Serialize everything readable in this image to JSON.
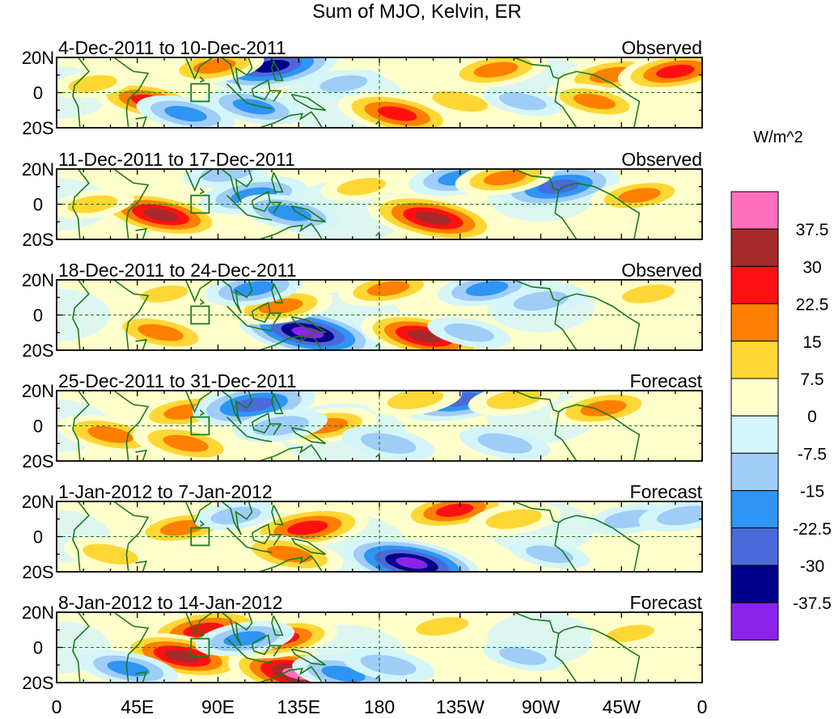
{
  "chart_data": {
    "type": "heatmap",
    "title": "Sum of MJO, Kelvin, ER",
    "colorbar": {
      "unit_label": "W/m^2",
      "tick_labels": [
        "37.5",
        "30",
        "22.5",
        "15",
        "7.5",
        "0",
        "-7.5",
        "-15",
        "-22.5",
        "-30",
        "-37.5"
      ],
      "colors": [
        "#ff70bb",
        "#a52a2a",
        "#ff1010",
        "#ff7f00",
        "#ffd735",
        "#ffffcc",
        "#d4f5f9",
        "#9fcdf8",
        "#2e95f5",
        "#4a6ad9",
        "#00008b",
        "#8b23e8"
      ]
    },
    "x_ticks": [
      "0",
      "45E",
      "90E",
      "135E",
      "180",
      "135W",
      "90W",
      "45W",
      "0"
    ],
    "y_ticks": [
      "20N",
      "0",
      "20S"
    ],
    "panels": [
      {
        "dates": "4-Dec-2011 to 10-Dec-2011",
        "status": "Observed",
        "features": [
          {
            "lon": 52,
            "lat": -5,
            "value": 25
          },
          {
            "lon": 72,
            "lat": -12,
            "value": -18
          },
          {
            "lon": 110,
            "lat": -8,
            "value": -18
          },
          {
            "lon": 120,
            "lat": 15,
            "value": -35
          },
          {
            "lon": 88,
            "lat": 15,
            "value": 18
          },
          {
            "lon": 190,
            "lat": -12,
            "value": 28
          },
          {
            "lon": 225,
            "lat": -5,
            "value": 15
          },
          {
            "lon": 245,
            "lat": 13,
            "value": 20
          },
          {
            "lon": 310,
            "lat": 10,
            "value": 22
          },
          {
            "lon": 345,
            "lat": 12,
            "value": 26
          },
          {
            "lon": 300,
            "lat": -5,
            "value": 18
          },
          {
            "lon": 160,
            "lat": 5,
            "value": -8
          },
          {
            "lon": 20,
            "lat": 5,
            "value": 9
          },
          {
            "lon": 260,
            "lat": -5,
            "value": -8
          }
        ]
      },
      {
        "dates": "11-Dec-2011 to 17-Dec-2011",
        "status": "Observed",
        "features": [
          {
            "lon": 58,
            "lat": -6,
            "value": 32
          },
          {
            "lon": 110,
            "lat": 5,
            "value": -22
          },
          {
            "lon": 130,
            "lat": -5,
            "value": -20
          },
          {
            "lon": 210,
            "lat": -8,
            "value": 35
          },
          {
            "lon": 225,
            "lat": 15,
            "value": -20
          },
          {
            "lon": 280,
            "lat": 10,
            "value": -30
          },
          {
            "lon": 250,
            "lat": 15,
            "value": 18
          },
          {
            "lon": 325,
            "lat": 5,
            "value": 18
          },
          {
            "lon": 170,
            "lat": 10,
            "value": 9
          },
          {
            "lon": 20,
            "lat": 0,
            "value": 10
          },
          {
            "lon": 95,
            "lat": 18,
            "value": -12
          }
        ]
      },
      {
        "dates": "18-Dec-2011 to 24-Dec-2011",
        "status": "Observed",
        "features": [
          {
            "lon": 58,
            "lat": -10,
            "value": 22
          },
          {
            "lon": 140,
            "lat": -10,
            "value": -38
          },
          {
            "lon": 205,
            "lat": -12,
            "value": 32
          },
          {
            "lon": 125,
            "lat": 5,
            "value": 20
          },
          {
            "lon": 110,
            "lat": 15,
            "value": -18
          },
          {
            "lon": 185,
            "lat": 15,
            "value": 18
          },
          {
            "lon": 240,
            "lat": 15,
            "value": -18
          },
          {
            "lon": 270,
            "lat": 8,
            "value": -14
          },
          {
            "lon": 330,
            "lat": 12,
            "value": 12
          },
          {
            "lon": 230,
            "lat": -10,
            "value": -10
          },
          {
            "lon": 60,
            "lat": 12,
            "value": 8
          }
        ]
      },
      {
        "dates": "25-Dec-2011 to 31-Dec-2011",
        "status": "Forecast",
        "features": [
          {
            "lon": 30,
            "lat": -5,
            "value": 22
          },
          {
            "lon": 72,
            "lat": 8,
            "value": 20
          },
          {
            "lon": 72,
            "lat": -10,
            "value": 22
          },
          {
            "lon": 110,
            "lat": 12,
            "value": -30
          },
          {
            "lon": 150,
            "lat": 0,
            "value": 20
          },
          {
            "lon": 125,
            "lat": 0,
            "value": -15
          },
          {
            "lon": 185,
            "lat": -10,
            "value": -15
          },
          {
            "lon": 225,
            "lat": 15,
            "value": -30
          },
          {
            "lon": 250,
            "lat": -10,
            "value": -14
          },
          {
            "lon": 305,
            "lat": 10,
            "value": 22
          },
          {
            "lon": 200,
            "lat": 15,
            "value": 15
          },
          {
            "lon": 255,
            "lat": 15,
            "value": 14
          }
        ]
      },
      {
        "dates": "1-Jan-2012 to 7-Jan-2012",
        "status": "Forecast",
        "features": [
          {
            "lon": 70,
            "lat": 5,
            "value": 20
          },
          {
            "lon": 30,
            "lat": -10,
            "value": 15
          },
          {
            "lon": 140,
            "lat": 5,
            "value": 30
          },
          {
            "lon": 130,
            "lat": -10,
            "value": 22
          },
          {
            "lon": 198,
            "lat": -15,
            "value": -38
          },
          {
            "lon": 222,
            "lat": 15,
            "value": 25
          },
          {
            "lon": 255,
            "lat": 10,
            "value": 15
          },
          {
            "lon": 320,
            "lat": 10,
            "value": -12
          },
          {
            "lon": 350,
            "lat": 12,
            "value": -14
          },
          {
            "lon": 100,
            "lat": 12,
            "value": -10
          },
          {
            "lon": 275,
            "lat": -10,
            "value": -8
          }
        ]
      },
      {
        "dates": "8-Jan-2012 to 14-Jan-2012",
        "status": "Forecast",
        "features": [
          {
            "lon": 82,
            "lat": 10,
            "value": 30
          },
          {
            "lon": 70,
            "lat": -5,
            "value": 32
          },
          {
            "lon": 135,
            "lat": -15,
            "value": 40
          },
          {
            "lon": 125,
            "lat": 5,
            "value": 25
          },
          {
            "lon": 160,
            "lat": -15,
            "value": -20
          },
          {
            "lon": 40,
            "lat": -12,
            "value": -18
          },
          {
            "lon": 105,
            "lat": 5,
            "value": -18
          },
          {
            "lon": 185,
            "lat": -10,
            "value": -15
          },
          {
            "lon": 215,
            "lat": 12,
            "value": 12
          },
          {
            "lon": 260,
            "lat": -5,
            "value": -8
          },
          {
            "lon": 320,
            "lat": 8,
            "value": 8
          }
        ]
      }
    ]
  }
}
